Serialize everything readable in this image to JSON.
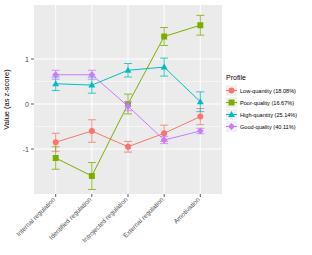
{
  "chart_data": {
    "type": "line",
    "y_label": "Value (as z-score)",
    "legend_title": "Profile",
    "categories": [
      "Internal regulation",
      "Identified regulation",
      "Introjected regulation",
      "External regulation",
      "Amotivation"
    ],
    "series": [
      {
        "name": "Low-quantity (18.08%)",
        "color": "#F8766D",
        "marker": "circle",
        "values": [
          -0.85,
          -0.6,
          -0.95,
          -0.65,
          -0.28
        ],
        "errors": [
          0.2,
          0.25,
          0.12,
          0.18,
          0.18
        ]
      },
      {
        "name": "Poor-quality (16.67%)",
        "color": "#7CAE00",
        "marker": "square",
        "values": [
          -1.2,
          -1.6,
          0.0,
          1.5,
          1.75
        ],
        "errors": [
          0.25,
          0.3,
          0.22,
          0.2,
          0.22
        ]
      },
      {
        "name": "High-quantity (25.14%)",
        "color": "#00BFC4",
        "marker": "triangle",
        "values": [
          0.45,
          0.42,
          0.75,
          0.82,
          0.05
        ],
        "errors": [
          0.15,
          0.18,
          0.15,
          0.2,
          0.22
        ]
      },
      {
        "name": "Good-quality (40.11%)",
        "color": "#C77CFF",
        "marker": "diamond",
        "values": [
          0.65,
          0.65,
          -0.05,
          -0.8,
          -0.6
        ],
        "errors": [
          0.1,
          0.1,
          0.1,
          0.08,
          0.06
        ]
      }
    ],
    "ylim": [
      -2.0,
      2.2
    ],
    "yticks": [
      -1,
      0,
      1
    ],
    "grid": true,
    "legend": "right"
  }
}
